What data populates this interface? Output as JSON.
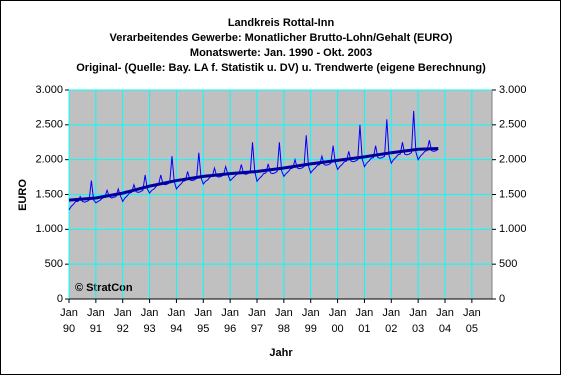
{
  "chart_data": {
    "type": "line",
    "title": "Landkreis Rottal-Inn",
    "subtitle": [
      "Verarbeitendes Gewerbe: Monatlicher Brutto-Lohn/Gehalt (EURO)",
      "Monatswerte: Jan. 1990 - Okt. 2003",
      "Original- (Quelle: Bay. LA f. Statistik u. DV) u. Trendwerte (eigene Berechnung)"
    ],
    "ylabel": "EURO",
    "xlabel": "Jahr",
    "annotation": "© StratCon",
    "grid": true,
    "xlim": [
      "1990-01",
      "2005-10"
    ],
    "xticks": [
      {
        "value": "1990-01",
        "label": "Jan 90"
      },
      {
        "value": "1991-01",
        "label": "Jan 91"
      },
      {
        "value": "1992-01",
        "label": "Jan 92"
      },
      {
        "value": "1993-01",
        "label": "Jan 93"
      },
      {
        "value": "1994-01",
        "label": "Jan 94"
      },
      {
        "value": "1995-01",
        "label": "Jan 95"
      },
      {
        "value": "1996-01",
        "label": "Jan 96"
      },
      {
        "value": "1997-01",
        "label": "Jan 97"
      },
      {
        "value": "1998-01",
        "label": "Jan 98"
      },
      {
        "value": "1999-01",
        "label": "Jan 99"
      },
      {
        "value": "2000-01",
        "label": "Jan 00"
      },
      {
        "value": "2001-01",
        "label": "Jan 01"
      },
      {
        "value": "2002-01",
        "label": "Jan 02"
      },
      {
        "value": "2003-01",
        "label": "Jan 03"
      },
      {
        "value": "2004-01",
        "label": "Jan 04"
      },
      {
        "value": "2005-01",
        "label": "Jan 05"
      }
    ],
    "ylim": [
      0,
      3000
    ],
    "yticks": [
      0,
      500,
      {
        "value": 1000,
        "label": "1.000"
      },
      {
        "value": 1500,
        "label": "1.500"
      },
      {
        "value": 2000,
        "label": "2.000"
      },
      {
        "value": 2500,
        "label": "2.500"
      },
      {
        "value": 3000,
        "label": "3.000"
      }
    ],
    "y2lim": [
      0,
      3000
    ],
    "y2ticks": [
      0,
      500,
      {
        "value": 1000,
        "label": "1.000"
      },
      {
        "value": 1500,
        "label": "1.500"
      },
      {
        "value": 2000,
        "label": "2.000"
      },
      {
        "value": 2500,
        "label": "2.500"
      },
      {
        "value": 3000,
        "label": "3.000"
      }
    ],
    "series": [
      {
        "color": "#0000ff",
        "width": 1,
        "x": [
          "1990-01",
          "1990-02",
          "1990-03",
          "1990-04",
          "1990-05",
          "1990-06",
          "1990-07",
          "1990-08",
          "1990-09",
          "1990-10",
          "1990-11",
          "1990-12",
          "1991-01",
          "1991-02",
          "1991-03",
          "1991-04",
          "1991-05",
          "1991-06",
          "1991-07",
          "1991-08",
          "1991-09",
          "1991-10",
          "1991-11",
          "1991-12",
          "1992-01",
          "1992-02",
          "1992-03",
          "1992-04",
          "1992-05",
          "1992-06",
          "1992-07",
          "1992-08",
          "1992-09",
          "1992-10",
          "1992-11",
          "1992-12",
          "1993-01",
          "1993-02",
          "1993-03",
          "1993-04",
          "1993-05",
          "1993-06",
          "1993-07",
          "1993-08",
          "1993-09",
          "1993-10",
          "1993-11",
          "1993-12",
          "1994-01",
          "1994-02",
          "1994-03",
          "1994-04",
          "1994-05",
          "1994-06",
          "1994-07",
          "1994-08",
          "1994-09",
          "1994-10",
          "1994-11",
          "1994-12",
          "1995-01",
          "1995-02",
          "1995-03",
          "1995-04",
          "1995-05",
          "1995-06",
          "1995-07",
          "1995-08",
          "1995-09",
          "1995-10",
          "1995-11",
          "1995-12",
          "1996-01",
          "1996-02",
          "1996-03",
          "1996-04",
          "1996-05",
          "1996-06",
          "1996-07",
          "1996-08",
          "1996-09",
          "1996-10",
          "1996-11",
          "1996-12",
          "1997-01",
          "1997-02",
          "1997-03",
          "1997-04",
          "1997-05",
          "1997-06",
          "1997-07",
          "1997-08",
          "1997-09",
          "1997-10",
          "1997-11",
          "1997-12",
          "1998-01",
          "1998-02",
          "1998-03",
          "1998-04",
          "1998-05",
          "1998-06",
          "1998-07",
          "1998-08",
          "1998-09",
          "1998-10",
          "1998-11",
          "1998-12",
          "1999-01",
          "1999-02",
          "1999-03",
          "1999-04",
          "1999-05",
          "1999-06",
          "1999-07",
          "1999-08",
          "1999-09",
          "1999-10",
          "1999-11",
          "1999-12",
          "2000-01",
          "2000-02",
          "2000-03",
          "2000-04",
          "2000-05",
          "2000-06",
          "2000-07",
          "2000-08",
          "2000-09",
          "2000-10",
          "2000-11",
          "2000-12",
          "2001-01",
          "2001-02",
          "2001-03",
          "2001-04",
          "2001-05",
          "2001-06",
          "2001-07",
          "2001-08",
          "2001-09",
          "2001-10",
          "2001-11",
          "2001-12",
          "2002-01",
          "2002-02",
          "2002-03",
          "2002-04",
          "2002-05",
          "2002-06",
          "2002-07",
          "2002-08",
          "2002-09",
          "2002-10",
          "2002-11",
          "2002-12",
          "2003-01",
          "2003-02",
          "2003-03",
          "2003-04",
          "2003-05",
          "2003-06",
          "2003-07",
          "2003-08",
          "2003-09",
          "2003-10"
        ],
        "values": [
          1280,
          1330,
          1360,
          1400,
          1400,
          1470,
          1400,
          1390,
          1400,
          1420,
          1700,
          1420,
          1380,
          1400,
          1420,
          1450,
          1460,
          1560,
          1470,
          1450,
          1460,
          1470,
          1580,
          1480,
          1400,
          1450,
          1480,
          1520,
          1530,
          1640,
          1540,
          1530,
          1540,
          1560,
          1780,
          1580,
          1520,
          1560,
          1580,
          1620,
          1640,
          1780,
          1650,
          1640,
          1650,
          1670,
          2050,
          1690,
          1580,
          1620,
          1650,
          1690,
          1700,
          1830,
          1710,
          1700,
          1710,
          1730,
          2100,
          1740,
          1650,
          1690,
          1710,
          1750,
          1760,
          1880,
          1760,
          1750,
          1760,
          1780,
          1900,
          1790,
          1700,
          1730,
          1760,
          1790,
          1800,
          1930,
          1800,
          1790,
          1800,
          1820,
          2250,
          1830,
          1690,
          1730,
          1760,
          1800,
          1810,
          1940,
          1810,
          1800,
          1810,
          1830,
          2250,
          1840,
          1760,
          1800,
          1830,
          1870,
          1880,
          2000,
          1880,
          1870,
          1880,
          1900,
          2350,
          1910,
          1810,
          1850,
          1880,
          1920,
          1930,
          2050,
          1930,
          1920,
          1930,
          1950,
          2200,
          1960,
          1860,
          1900,
          1930,
          1970,
          1980,
          2120,
          1980,
          1970,
          1980,
          2000,
          2500,
          2010,
          1900,
          1950,
          1980,
          2020,
          2030,
          2200,
          2030,
          2020,
          2030,
          2050,
          2580,
          2060,
          1950,
          2000,
          2030,
          2070,
          2080,
          2250,
          2080,
          2070,
          2080,
          2100,
          2700,
          2110,
          2000,
          2050,
          2080,
          2120,
          2130,
          2280,
          2130,
          2120,
          2130,
          2150
        ]
      },
      {
        "color": "#0000a0",
        "width": 3,
        "x": [
          "1990-01",
          "1991-01",
          "1992-01",
          "1993-01",
          "1994-01",
          "1995-01",
          "1996-01",
          "1997-01",
          "1998-01",
          "1999-01",
          "2000-01",
          "2001-01",
          "2002-01",
          "2003-01",
          "2003-10"
        ],
        "values": [
          1420,
          1450,
          1520,
          1620,
          1700,
          1760,
          1800,
          1830,
          1880,
          1940,
          1990,
          2040,
          2100,
          2150,
          2160
        ]
      }
    ]
  }
}
